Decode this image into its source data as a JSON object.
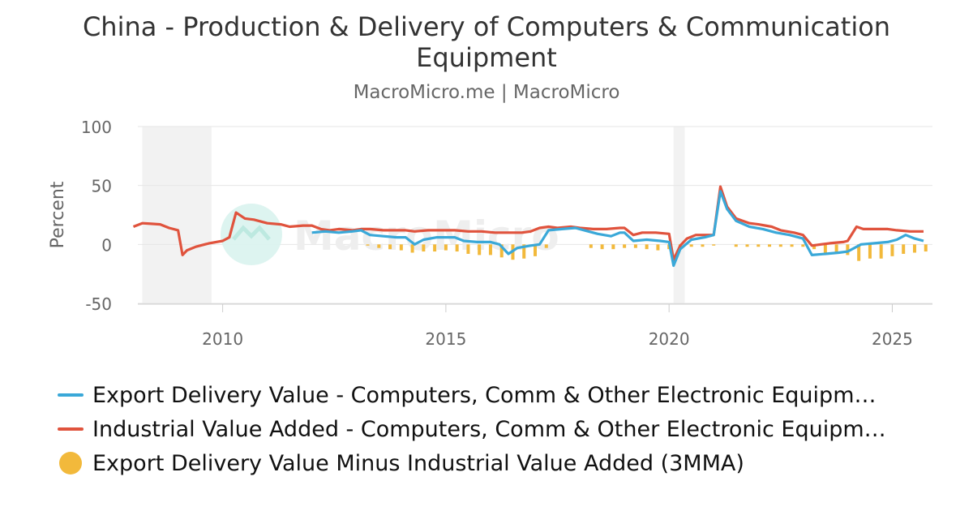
{
  "title": "China - Production & Delivery of Computers & Communication Equipment",
  "subtitle": "MacroMicro.me | MacroMicro",
  "watermark": "MacroMicro",
  "colors": {
    "export": "#3aa8d8",
    "industrial": "#e0533d",
    "diff": "#f2b93b",
    "recession": "#f2f2f2",
    "grid": "#e6e6e6"
  },
  "legend": [
    {
      "label": "Export Delivery Value - Computers, Comm & Other Electronic Equipm…",
      "color": "#3aa8d8",
      "symbol": "line"
    },
    {
      "label": "Industrial Value Added - Computers, Comm & Other Electronic Equipm…",
      "color": "#e0533d",
      "symbol": "line"
    },
    {
      "label": "Export Delivery Value Minus Industrial Value Added (3MMA)",
      "color": "#f2b93b",
      "symbol": "circle"
    }
  ],
  "chart_data": {
    "type": "line",
    "title": "China - Production & Delivery of Computers & Communication Equipment",
    "subtitle": "MacroMicro.me | MacroMicro",
    "ylabel": "Percent",
    "xlabel": "",
    "ylim": [
      -50,
      100
    ],
    "xlim": [
      2008.1,
      2025.9
    ],
    "yticks": [
      -50,
      0,
      50,
      100
    ],
    "xticks": [
      2010,
      2015,
      2020,
      2025
    ],
    "grid": true,
    "legend_position": "bottom",
    "shaded_periods": [
      [
        2008.2,
        2009.75
      ],
      [
        2020.1,
        2020.35
      ]
    ],
    "series": [
      {
        "name": "Industrial Value Added - Computers, Comm & Other Electronic Equipm…",
        "kind": "line",
        "points": [
          [
            2008.0,
            15
          ],
          [
            2008.2,
            18
          ],
          [
            2008.4,
            17.5
          ],
          [
            2008.6,
            17
          ],
          [
            2008.8,
            14
          ],
          [
            2009.0,
            12
          ],
          [
            2009.1,
            -9
          ],
          [
            2009.2,
            -5
          ],
          [
            2009.4,
            -2
          ],
          [
            2009.7,
            1
          ],
          [
            2010.0,
            3
          ],
          [
            2010.15,
            6
          ],
          [
            2010.3,
            27
          ],
          [
            2010.5,
            22
          ],
          [
            2010.7,
            21
          ],
          [
            2011.0,
            18
          ],
          [
            2011.3,
            17
          ],
          [
            2011.5,
            15
          ],
          [
            2011.8,
            16
          ],
          [
            2012.0,
            16
          ],
          [
            2012.2,
            13
          ],
          [
            2012.4,
            12
          ],
          [
            2012.6,
            13
          ],
          [
            2012.9,
            12
          ],
          [
            2013.1,
            13
          ],
          [
            2013.3,
            13
          ],
          [
            2013.6,
            12
          ],
          [
            2013.9,
            12
          ],
          [
            2014.1,
            12
          ],
          [
            2014.3,
            11
          ],
          [
            2014.6,
            12
          ],
          [
            2014.9,
            12
          ],
          [
            2015.2,
            12
          ],
          [
            2015.5,
            11
          ],
          [
            2015.8,
            11
          ],
          [
            2016.1,
            10
          ],
          [
            2016.4,
            10
          ],
          [
            2016.7,
            10
          ],
          [
            2016.9,
            11
          ],
          [
            2017.1,
            14
          ],
          [
            2017.3,
            15
          ],
          [
            2017.5,
            14
          ],
          [
            2017.8,
            15
          ],
          [
            2018.0,
            14
          ],
          [
            2018.3,
            13
          ],
          [
            2018.6,
            13
          ],
          [
            2018.9,
            14
          ],
          [
            2019.0,
            14
          ],
          [
            2019.2,
            8
          ],
          [
            2019.4,
            10
          ],
          [
            2019.7,
            10
          ],
          [
            2020.0,
            9
          ],
          [
            2020.1,
            -13
          ],
          [
            2020.25,
            -1
          ],
          [
            2020.4,
            5
          ],
          [
            2020.6,
            8
          ],
          [
            2020.9,
            8
          ],
          [
            2021.0,
            8
          ],
          [
            2021.15,
            49
          ],
          [
            2021.3,
            32
          ],
          [
            2021.5,
            22
          ],
          [
            2021.8,
            18
          ],
          [
            2022.0,
            17
          ],
          [
            2022.3,
            15
          ],
          [
            2022.5,
            12
          ],
          [
            2022.8,
            10
          ],
          [
            2023.0,
            8
          ],
          [
            2023.2,
            -1
          ],
          [
            2023.4,
            0
          ],
          [
            2023.6,
            1
          ],
          [
            2023.9,
            2
          ],
          [
            2024.0,
            3
          ],
          [
            2024.2,
            15
          ],
          [
            2024.35,
            13
          ],
          [
            2024.6,
            13
          ],
          [
            2024.9,
            13
          ],
          [
            2025.1,
            12
          ],
          [
            2025.4,
            11
          ],
          [
            2025.7,
            11
          ]
        ]
      },
      {
        "name": "Export Delivery Value - Computers, Comm & Other Electronic Equipm…",
        "kind": "line",
        "points": [
          [
            2012.0,
            10
          ],
          [
            2012.3,
            11
          ],
          [
            2012.6,
            10
          ],
          [
            2012.9,
            11
          ],
          [
            2013.1,
            12
          ],
          [
            2013.3,
            8
          ],
          [
            2013.6,
            7
          ],
          [
            2013.9,
            6
          ],
          [
            2014.1,
            6
          ],
          [
            2014.3,
            0
          ],
          [
            2014.5,
            4
          ],
          [
            2014.8,
            6
          ],
          [
            2015.0,
            6
          ],
          [
            2015.2,
            6
          ],
          [
            2015.4,
            3
          ],
          [
            2015.7,
            2
          ],
          [
            2016.0,
            2
          ],
          [
            2016.2,
            0
          ],
          [
            2016.4,
            -8
          ],
          [
            2016.6,
            -3
          ],
          [
            2016.9,
            -1
          ],
          [
            2017.1,
            0
          ],
          [
            2017.3,
            12
          ],
          [
            2017.6,
            13
          ],
          [
            2017.9,
            14
          ],
          [
            2018.1,
            12
          ],
          [
            2018.4,
            9
          ],
          [
            2018.7,
            7
          ],
          [
            2018.9,
            10
          ],
          [
            2019.0,
            10
          ],
          [
            2019.2,
            3
          ],
          [
            2019.5,
            4
          ],
          [
            2019.8,
            3
          ],
          [
            2020.0,
            2
          ],
          [
            2020.1,
            -18
          ],
          [
            2020.25,
            -4
          ],
          [
            2020.5,
            4
          ],
          [
            2020.8,
            6
          ],
          [
            2021.0,
            8
          ],
          [
            2021.15,
            45
          ],
          [
            2021.3,
            30
          ],
          [
            2021.5,
            20
          ],
          [
            2021.8,
            15
          ],
          [
            2022.1,
            13
          ],
          [
            2022.4,
            10
          ],
          [
            2022.7,
            8
          ],
          [
            2023.0,
            5
          ],
          [
            2023.2,
            -9
          ],
          [
            2023.5,
            -8
          ],
          [
            2023.8,
            -7
          ],
          [
            2024.0,
            -6
          ],
          [
            2024.3,
            0
          ],
          [
            2024.6,
            1
          ],
          [
            2024.9,
            2
          ],
          [
            2025.1,
            4
          ],
          [
            2025.3,
            8
          ],
          [
            2025.5,
            5
          ],
          [
            2025.7,
            3
          ]
        ]
      },
      {
        "name": "Export Delivery Value Minus Industrial Value Added (3MMA)",
        "kind": "bar",
        "points": [
          [
            2013.25,
            -1
          ],
          [
            2013.5,
            -3
          ],
          [
            2013.75,
            -4
          ],
          [
            2014.0,
            -5
          ],
          [
            2014.25,
            -7
          ],
          [
            2014.5,
            -6
          ],
          [
            2014.75,
            -6
          ],
          [
            2015.0,
            -5
          ],
          [
            2015.25,
            -6
          ],
          [
            2015.5,
            -8
          ],
          [
            2015.75,
            -9
          ],
          [
            2016.0,
            -9
          ],
          [
            2016.25,
            -11
          ],
          [
            2016.5,
            -13
          ],
          [
            2016.75,
            -12
          ],
          [
            2017.0,
            -10
          ],
          [
            2017.25,
            -3
          ],
          [
            2018.25,
            -3
          ],
          [
            2018.5,
            -4
          ],
          [
            2018.75,
            -4
          ],
          [
            2019.0,
            -3
          ],
          [
            2019.25,
            -3
          ],
          [
            2019.5,
            -4
          ],
          [
            2019.75,
            -5
          ],
          [
            2020.0,
            -4
          ],
          [
            2020.25,
            -2
          ],
          [
            2020.5,
            -2
          ],
          [
            2020.75,
            -2
          ],
          [
            2021.0,
            -1
          ],
          [
            2021.5,
            -2
          ],
          [
            2021.75,
            -2
          ],
          [
            2022.0,
            -2
          ],
          [
            2022.25,
            -2
          ],
          [
            2022.5,
            -2
          ],
          [
            2022.75,
            -2
          ],
          [
            2023.0,
            -2
          ],
          [
            2023.25,
            -4
          ],
          [
            2023.5,
            -7
          ],
          [
            2023.75,
            -8
          ],
          [
            2024.0,
            -9
          ],
          [
            2024.25,
            -14
          ],
          [
            2024.5,
            -12
          ],
          [
            2024.75,
            -12
          ],
          [
            2025.0,
            -10
          ],
          [
            2025.25,
            -8
          ],
          [
            2025.5,
            -7
          ],
          [
            2025.75,
            -6
          ]
        ]
      }
    ]
  }
}
